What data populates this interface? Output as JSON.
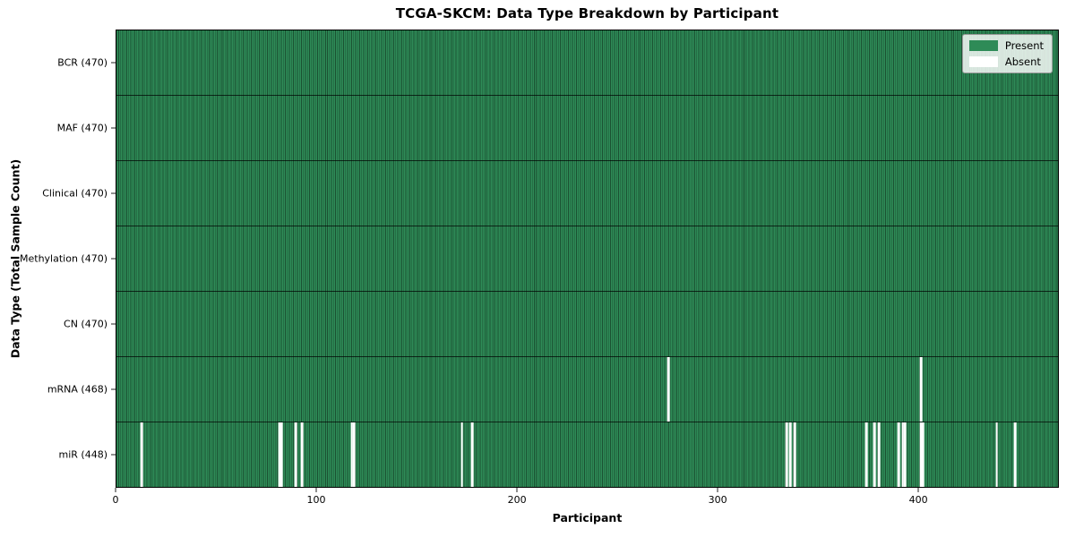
{
  "chart_data": {
    "type": "heatmap",
    "title": "TCGA-SKCM: Data Type Breakdown by Participant",
    "xlabel": "Participant",
    "ylabel": "Data Type (Total Sample Count)",
    "x_ticks": [
      0,
      100,
      200,
      300,
      400
    ],
    "x_range": [
      0,
      470
    ],
    "n_participants": 470,
    "grid": false,
    "legend": {
      "position": "upper right",
      "entries": [
        {
          "label": "Present",
          "color": "#2e8b57"
        },
        {
          "label": "Absent",
          "color": "#ffffff"
        }
      ]
    },
    "rows": [
      {
        "data_type": "BCR",
        "label": "BCR (470)",
        "present_count": 470,
        "absent_participants": []
      },
      {
        "data_type": "MAF",
        "label": "MAF (470)",
        "present_count": 470,
        "absent_participants": []
      },
      {
        "data_type": "Clinical",
        "label": "Clinical (470)",
        "present_count": 470,
        "absent_participants": []
      },
      {
        "data_type": "Methylation",
        "label": "Methylation (470)",
        "present_count": 470,
        "absent_participants": []
      },
      {
        "data_type": "CN",
        "label": "CN (470)",
        "present_count": 470,
        "absent_participants": []
      },
      {
        "data_type": "mRNA",
        "label": "mRNA (468)",
        "present_count": 468,
        "absent_participants": [
          275,
          401
        ]
      },
      {
        "data_type": "miR",
        "label": "miR (448)",
        "present_count": 448,
        "absent_participants": [
          12,
          81,
          82,
          89,
          92,
          117,
          118,
          172,
          177,
          334,
          336,
          338,
          374,
          378,
          380,
          390,
          392,
          393,
          401,
          402,
          439,
          448
        ]
      }
    ]
  }
}
